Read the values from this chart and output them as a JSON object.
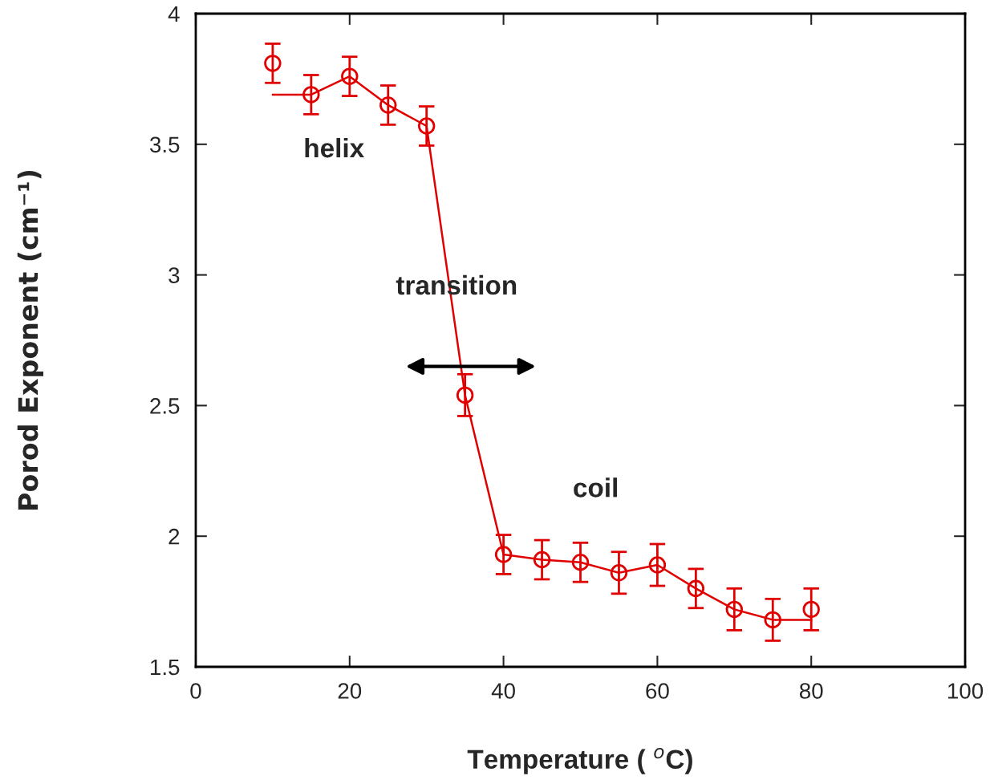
{
  "chart_data": {
    "type": "scatter",
    "xlabel": "Temperature ( $^{o}$C)",
    "ylabel": "Porod Exponent (cm⁻¹)",
    "x": [
      10,
      15,
      20,
      25,
      30,
      35,
      40,
      45,
      50,
      55,
      60,
      65,
      70,
      75,
      80
    ],
    "series": [
      {
        "color": "#e00000",
        "marker": "circle",
        "values": [
          3.81,
          3.69,
          3.76,
          3.65,
          3.57,
          2.54,
          1.93,
          1.91,
          1.9,
          1.86,
          1.89,
          1.8,
          1.72,
          1.68,
          1.72
        ],
        "errors": [
          0.075,
          0.075,
          0.075,
          0.075,
          0.075,
          0.08,
          0.075,
          0.075,
          0.075,
          0.08,
          0.08,
          0.075,
          0.08,
          0.08,
          0.08
        ]
      },
      {
        "type": "line",
        "color": "#e00000",
        "marker": "none",
        "values": [
          3.69,
          3.69,
          3.76,
          3.65,
          3.57,
          2.54,
          1.93,
          1.91,
          1.9,
          1.86,
          1.89,
          1.8,
          1.72,
          1.68,
          1.68
        ]
      }
    ],
    "annotations": [
      "helix",
      "transition",
      "coil"
    ],
    "xlim": [
      0,
      100
    ],
    "ylim": [
      1.5,
      4
    ],
    "xticks": [
      0,
      20,
      40,
      60,
      80,
      100
    ],
    "yticks": [
      1.5,
      2,
      2.5,
      3,
      3.5,
      4
    ],
    "grid": false,
    "legend": false
  }
}
